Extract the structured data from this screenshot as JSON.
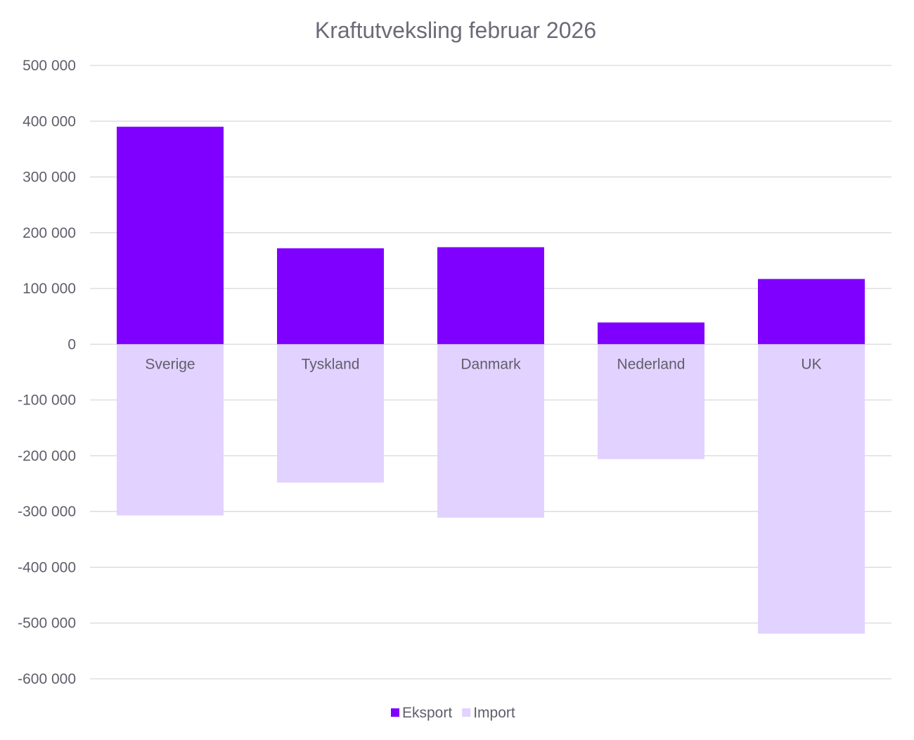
{
  "chart_data": {
    "type": "bar",
    "title": "Kraftutveksling februar 2026",
    "xlabel": "",
    "ylabel": "",
    "categories": [
      "Sverige",
      "Tyskland",
      "Danmark",
      "Nederland",
      "UK"
    ],
    "series": [
      {
        "name": "Eksport",
        "color": "#7f00ff",
        "values": [
          390000,
          172000,
          174000,
          39000,
          117000
        ]
      },
      {
        "name": "Import",
        "color": "#e2d2ff",
        "values": [
          -307000,
          -248000,
          -311000,
          -206000,
          -519000
        ]
      }
    ],
    "ylim": [
      -600000,
      500000
    ],
    "yticks": [
      500000,
      400000,
      300000,
      200000,
      100000,
      0,
      -100000,
      -200000,
      -300000,
      -400000,
      -500000,
      -600000
    ],
    "ytick_labels": [
      "500 000",
      "400 000",
      "300 000",
      "200 000",
      "100 000",
      "0",
      "-100 000",
      "-200 000",
      "-300 000",
      "-400 000",
      "-500 000",
      "-600 000"
    ],
    "grid": true,
    "legend_position": "bottom",
    "stacked": true
  }
}
